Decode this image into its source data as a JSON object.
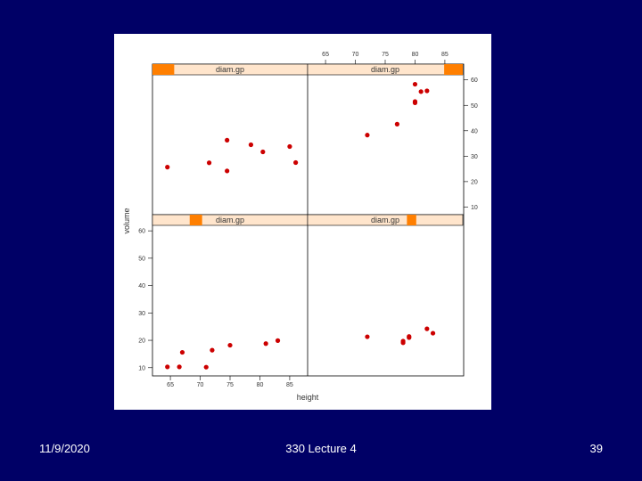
{
  "footer": {
    "date": "11/9/2020",
    "title": "330 Lecture 4",
    "page": "39"
  },
  "colors": {
    "point": "#cc0000",
    "strip_bg": "#ffe5cc",
    "strip_fill": "#ff7f00",
    "axis": "#000000"
  },
  "chart_data": {
    "type": "scatter",
    "layout": "lattice 2x2 conditioned on diam.gp",
    "xlabel": "height",
    "ylabel": "volume",
    "xlim": [
      62,
      88
    ],
    "ylim": [
      7,
      62
    ],
    "x_ticks": [
      65,
      70,
      75,
      80,
      85
    ],
    "y_ticks": [
      10,
      20,
      30,
      40,
      50,
      60
    ],
    "panels": [
      {
        "strip": "diam.gp",
        "level_range": [
          0.24,
          0.32
        ],
        "points": [
          [
            64.5,
            10.3
          ],
          [
            66.5,
            10.3
          ],
          [
            67,
            15.6
          ],
          [
            71,
            10.2
          ],
          [
            72,
            16.4
          ],
          [
            75,
            18.2
          ],
          [
            81,
            18.8
          ],
          [
            83,
            19.9
          ]
        ]
      },
      {
        "strip": "diam.gp",
        "level_range": [
          0.64,
          0.7
        ],
        "points": [
          [
            72,
            21.3
          ],
          [
            78,
            19.1
          ],
          [
            78,
            19.7
          ],
          [
            79,
            21
          ],
          [
            79,
            21.4
          ],
          [
            82,
            24.2
          ],
          [
            83,
            22.6
          ]
        ]
      },
      {
        "strip": "diam.gp",
        "level_range": [
          0.0,
          0.14
        ],
        "points": [
          [
            64.5,
            25.7
          ],
          [
            71.5,
            27.4
          ],
          [
            74.5,
            24.2
          ],
          [
            74.5,
            36.3
          ],
          [
            78.5,
            34.5
          ],
          [
            80.5,
            31.7
          ],
          [
            85,
            33.8
          ],
          [
            86,
            27.5
          ]
        ]
      },
      {
        "strip": "diam.gp",
        "level_range": [
          0.88,
          1.0
        ],
        "points": [
          [
            72,
            38.3
          ],
          [
            77,
            42.6
          ],
          [
            80,
            51.0
          ],
          [
            80,
            51.5
          ],
          [
            80,
            58.3
          ],
          [
            81,
            55.4
          ],
          [
            82,
            55.7
          ]
        ]
      }
    ]
  }
}
